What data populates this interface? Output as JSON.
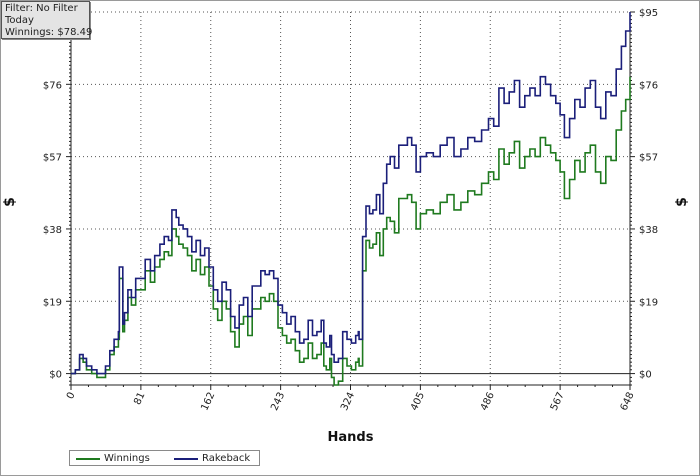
{
  "info": {
    "filter": "Filter: No Filter",
    "period": "Today",
    "winnings": "Winnings: $78.49"
  },
  "legend": {
    "winnings": "Winnings",
    "rakeback": "Rakeback"
  },
  "colors": {
    "winnings": "#1f7a1f",
    "rakeback": "#1b1f7a",
    "grid": "#555555"
  },
  "chart_data": {
    "type": "line",
    "xlabel": "Hands",
    "ylabel_left": "$",
    "ylabel_right": "$",
    "xlim": [
      0,
      648
    ],
    "ylim": [
      -3,
      95
    ],
    "x_ticks": [
      0,
      81,
      162,
      243,
      324,
      405,
      486,
      567,
      648
    ],
    "y_ticks": [
      0,
      19,
      38,
      57,
      76,
      95
    ],
    "y_tick_labels": [
      "$0",
      "$19",
      "$38",
      "$57",
      "$76",
      "$95"
    ],
    "grid": true,
    "legend_position": "bottom-left",
    "series": [
      {
        "name": "Winnings",
        "x": [
          0,
          5,
          10,
          14,
          18,
          24,
          30,
          35,
          40,
          45,
          50,
          55,
          56,
          60,
          62,
          66,
          70,
          75,
          81,
          86,
          92,
          97,
          103,
          108,
          113,
          117,
          122,
          125,
          130,
          135,
          140,
          145,
          150,
          155,
          160,
          165,
          170,
          175,
          180,
          185,
          190,
          195,
          200,
          205,
          210,
          215,
          220,
          225,
          230,
          235,
          240,
          245,
          250,
          255,
          260,
          265,
          270,
          275,
          280,
          285,
          290,
          293,
          296,
          300,
          302,
          305,
          310,
          315,
          320,
          325,
          330,
          333,
          334,
          338,
          342,
          346,
          350,
          354,
          358,
          362,
          366,
          370,
          375,
          380,
          385,
          390,
          395,
          400,
          405,
          412,
          420,
          428,
          436,
          444,
          452,
          460,
          468,
          476,
          484,
          490,
          496,
          502,
          508,
          514,
          520,
          526,
          532,
          538,
          544,
          550,
          556,
          562,
          567,
          572,
          578,
          584,
          590,
          596,
          602,
          608,
          614,
          620,
          626,
          632,
          638,
          643,
          648
        ],
        "values": [
          0,
          1,
          4,
          3,
          1,
          0,
          -1,
          -1,
          1,
          5,
          7,
          9,
          25,
          11,
          14,
          20,
          18,
          22,
          22,
          27,
          24,
          28,
          30,
          32,
          31,
          38,
          36,
          34,
          33,
          31,
          27,
          30,
          26,
          28,
          23,
          17,
          14,
          19,
          17,
          11,
          7,
          13,
          15,
          10,
          17,
          17,
          20,
          19,
          21,
          19,
          12,
          10,
          8,
          9,
          6,
          3,
          4,
          8,
          4,
          5,
          8,
          2,
          1,
          4,
          -1,
          -3,
          -2,
          4,
          2,
          1,
          3,
          4,
          2,
          27,
          35,
          33,
          34,
          37,
          31,
          38,
          41,
          40,
          37,
          46,
          46,
          47,
          45,
          38,
          42,
          43,
          42,
          45,
          47,
          43,
          45,
          48,
          47,
          50,
          53,
          51,
          59,
          55,
          58,
          61,
          54,
          57,
          59,
          57,
          62,
          60,
          58,
          56,
          53,
          46,
          51,
          56,
          53,
          58,
          60,
          53,
          50,
          57,
          56,
          64,
          69,
          72,
          78
        ]
      },
      {
        "name": "Rakeback",
        "x": [
          0,
          5,
          10,
          14,
          18,
          24,
          30,
          35,
          40,
          45,
          50,
          55,
          56,
          60,
          62,
          66,
          70,
          75,
          81,
          86,
          92,
          97,
          103,
          108,
          113,
          117,
          122,
          125,
          130,
          135,
          140,
          145,
          150,
          155,
          160,
          165,
          170,
          175,
          180,
          185,
          190,
          195,
          200,
          205,
          210,
          215,
          220,
          225,
          230,
          235,
          240,
          245,
          250,
          255,
          260,
          265,
          270,
          275,
          280,
          285,
          290,
          293,
          296,
          300,
          302,
          305,
          310,
          315,
          320,
          325,
          330,
          333,
          334,
          338,
          342,
          346,
          350,
          354,
          358,
          362,
          366,
          370,
          375,
          380,
          385,
          390,
          395,
          400,
          405,
          412,
          420,
          428,
          436,
          444,
          452,
          460,
          468,
          476,
          484,
          490,
          496,
          502,
          508,
          514,
          520,
          526,
          532,
          538,
          544,
          550,
          556,
          562,
          567,
          572,
          578,
          584,
          590,
          596,
          602,
          608,
          614,
          620,
          626,
          632,
          638,
          643,
          648
        ],
        "values": [
          0,
          1,
          5,
          4,
          2,
          1,
          0,
          0,
          2,
          6,
          9,
          11,
          28,
          13,
          16,
          22,
          20,
          25,
          25,
          30,
          27,
          31,
          34,
          36,
          35,
          43,
          41,
          39,
          38,
          36,
          32,
          35,
          31,
          33,
          28,
          22,
          19,
          24,
          22,
          15,
          12,
          18,
          20,
          15,
          23,
          23,
          27,
          26,
          27,
          25,
          18,
          16,
          13,
          15,
          11,
          8,
          9,
          14,
          10,
          11,
          14,
          8,
          7,
          10,
          5,
          3,
          4,
          11,
          9,
          8,
          10,
          11,
          9,
          36,
          44,
          42,
          43,
          47,
          42,
          50,
          55,
          57,
          54,
          60,
          60,
          62,
          60,
          53,
          57,
          58,
          57,
          60,
          62,
          57,
          59,
          62,
          61,
          64,
          67,
          65,
          75,
          71,
          74,
          77,
          70,
          73,
          75,
          73,
          78,
          76,
          73,
          71,
          68,
          62,
          67,
          72,
          70,
          75,
          77,
          70,
          67,
          74,
          73,
          80,
          86,
          90,
          95
        ]
      }
    ]
  }
}
